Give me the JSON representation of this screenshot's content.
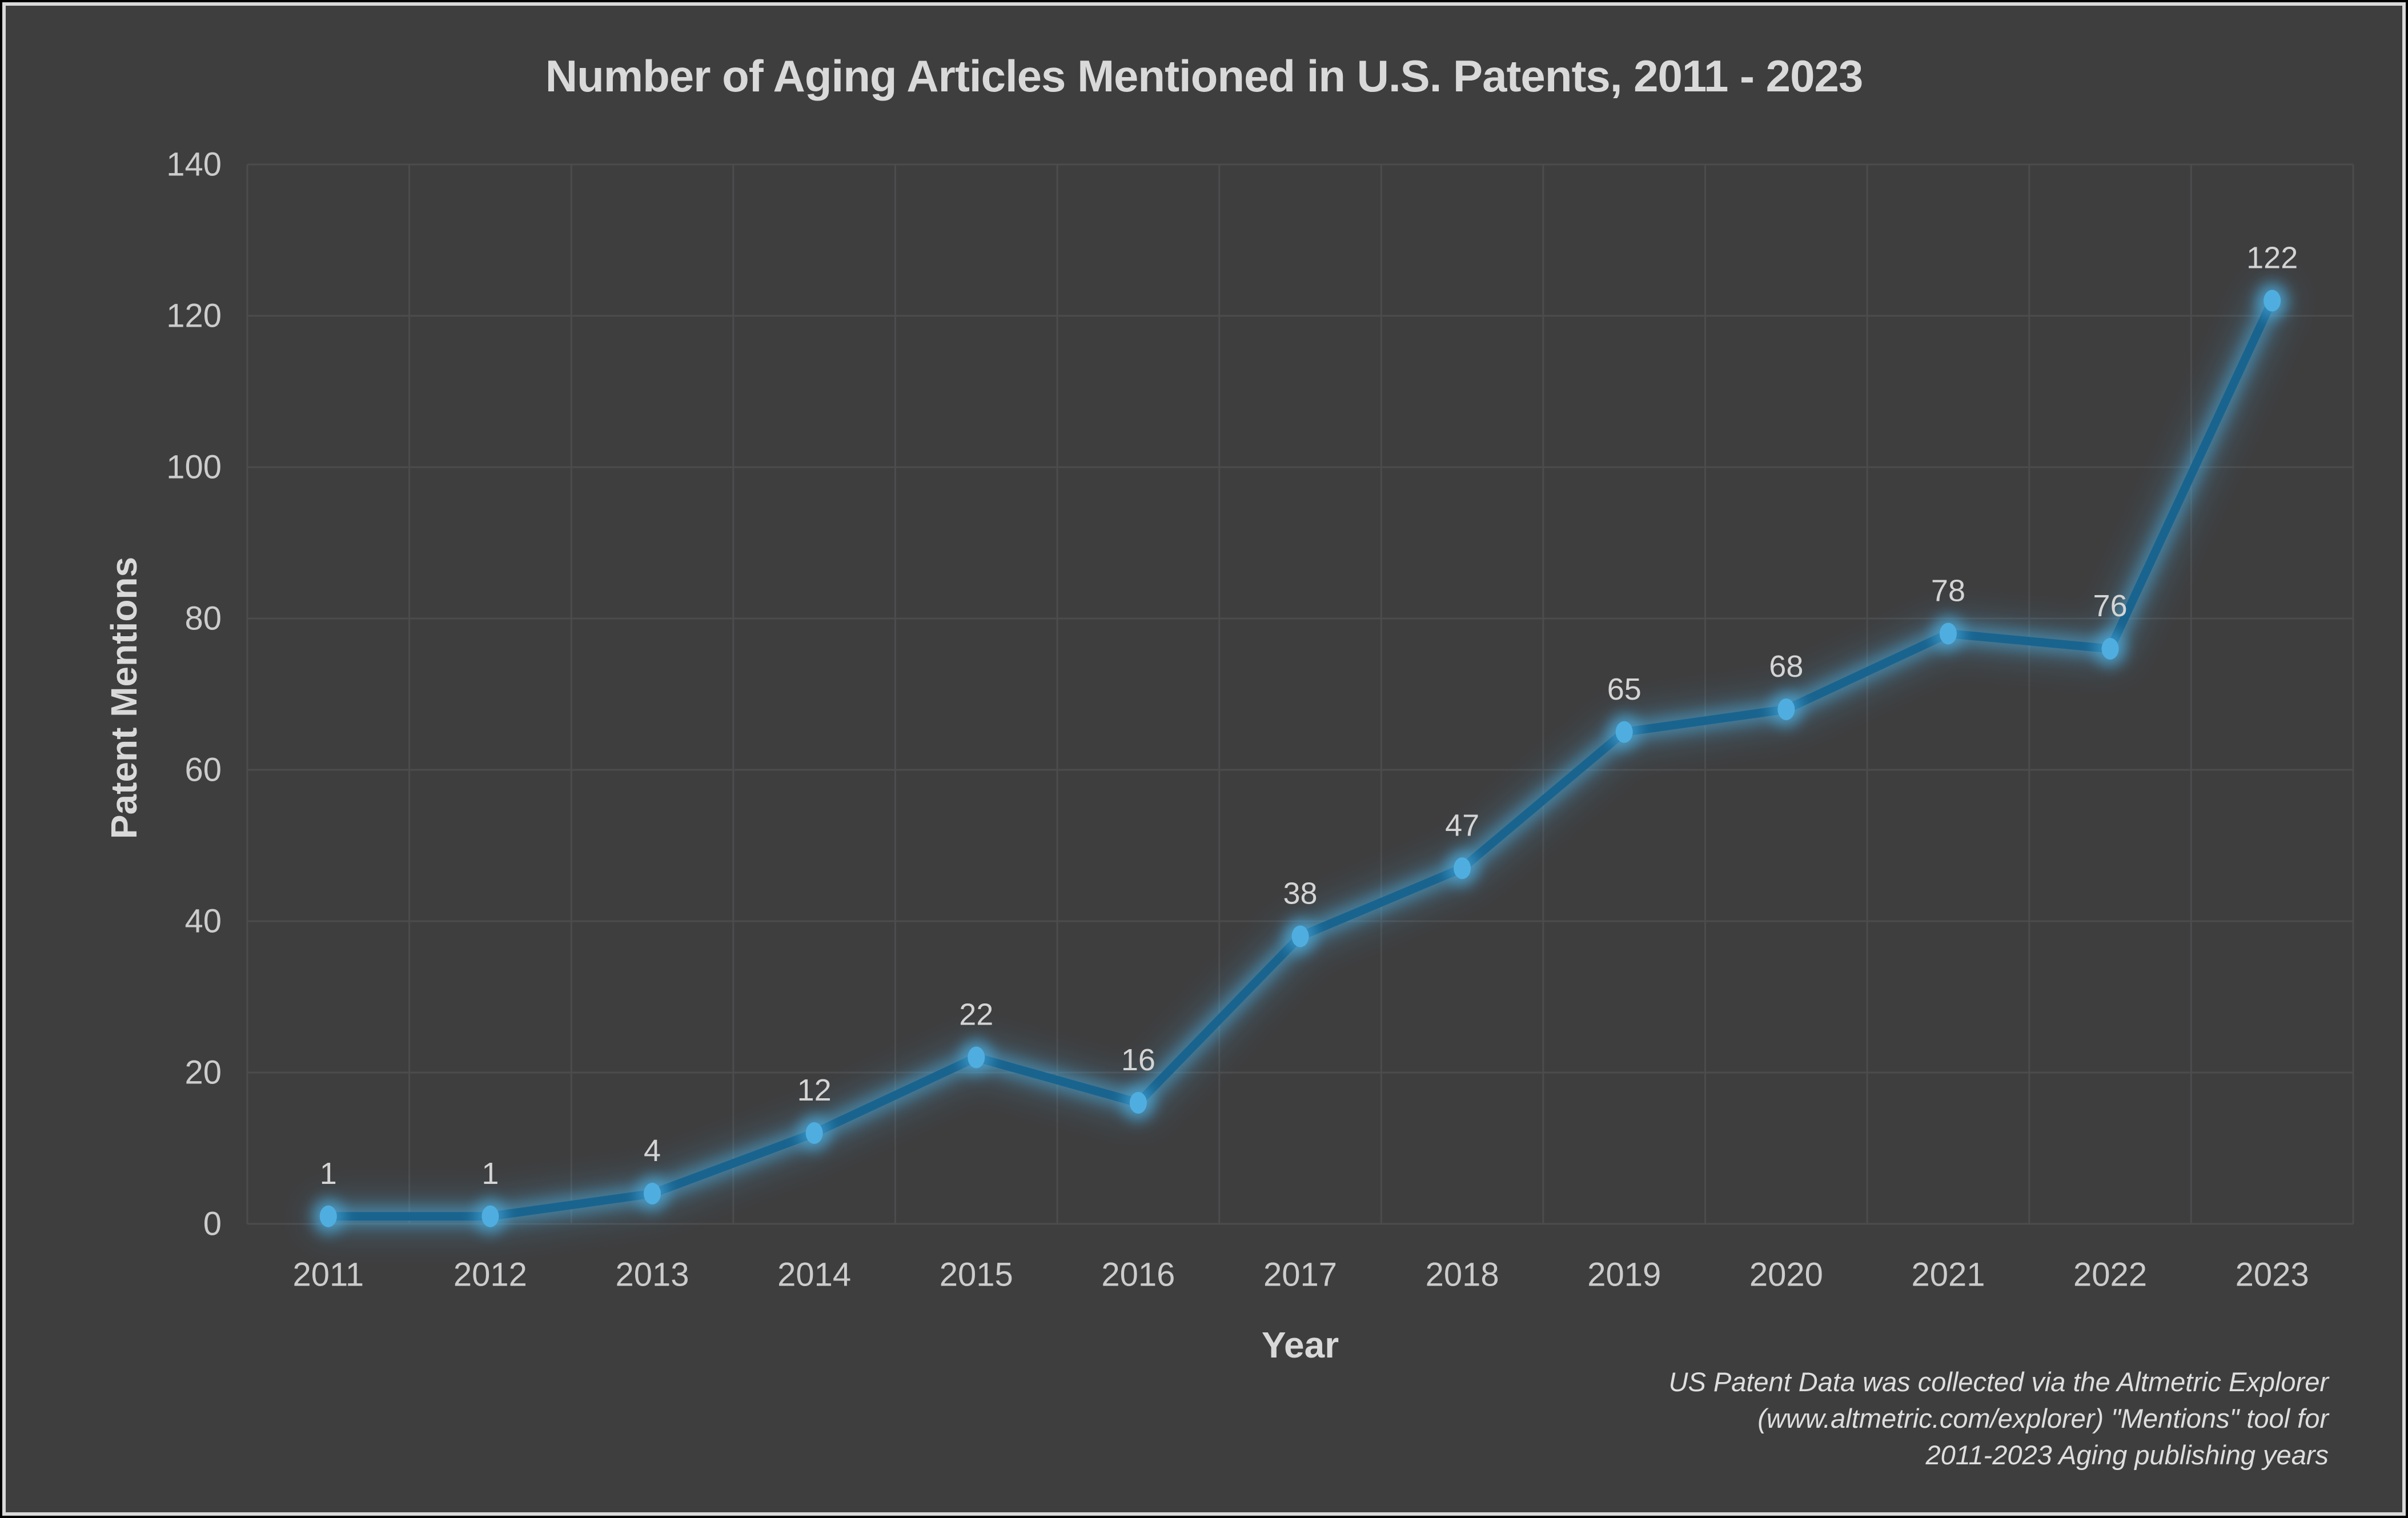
{
  "title": "Number of Aging Articles Mentioned in U.S. Patents, 2011 - 2023",
  "chart_data": {
    "type": "line",
    "title": "Number of Aging Articles Mentioned in U.S. Patents, 2011 - 2023",
    "xlabel": "Year",
    "ylabel": "Patent Mentions",
    "categories": [
      "2011",
      "2012",
      "2013",
      "2014",
      "2015",
      "2016",
      "2017",
      "2018",
      "2019",
      "2020",
      "2021",
      "2022",
      "2023"
    ],
    "series": [
      {
        "name": "Patent Mentions",
        "values": [
          1,
          1,
          4,
          12,
          22,
          16,
          38,
          47,
          65,
          68,
          78,
          76,
          122
        ]
      }
    ],
    "data_labels": [
      "1",
      "1",
      "4",
      "12",
      "22",
      "16",
      "38",
      "47",
      "65",
      "68",
      "78",
      "76",
      "122"
    ],
    "yticks": [
      0,
      20,
      40,
      60,
      80,
      100,
      120,
      140
    ],
    "ylim": [
      0,
      140
    ],
    "grid": "both",
    "legend": "none",
    "marker": "circle"
  },
  "footnote": {
    "lines": [
      "US Patent Data was collected via the Altmetric Explorer",
      "(www.altmetric.com/explorer) \"Mentions\" tool for",
      "2011-2023 Aging publishing years"
    ]
  },
  "colors": {
    "background": "#3E3E3F",
    "frame_outer": "#000000",
    "frame_inner": "#D9D9D9",
    "gridline": "#4C4C4D",
    "text": "#D9D9D9",
    "tick_text": "#CCCCCC",
    "line": "#19648F",
    "marker": "#4FAEDF",
    "glow": "#4FB4E8"
  }
}
